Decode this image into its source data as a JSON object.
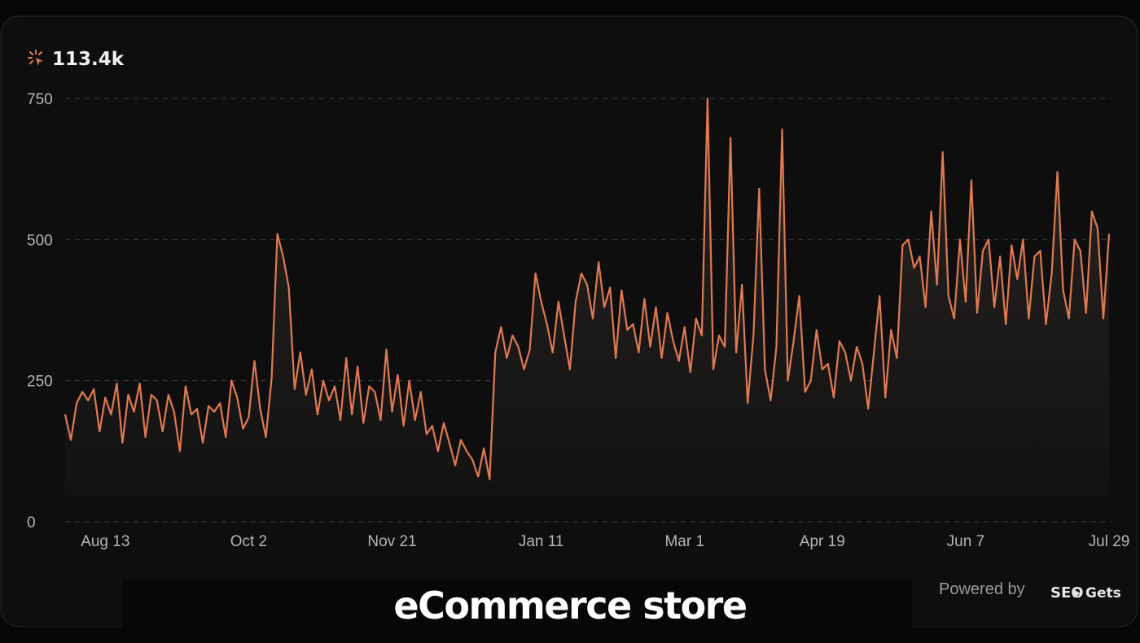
{
  "chart_data": {
    "type": "line",
    "summary": "113.4k",
    "caption": "eCommerce store",
    "footer": "Powered by",
    "brand": [
      "SEO",
      "Gets"
    ],
    "color": "#e07a50",
    "ylim": [
      0,
      750
    ],
    "yticks": [
      0,
      250,
      500,
      750
    ],
    "grid": true,
    "categories": [
      null,
      null,
      null,
      null,
      null,
      null,
      null,
      "Aug 13",
      null,
      null,
      null,
      null,
      null,
      null,
      null,
      null,
      null,
      null,
      null,
      null,
      null,
      null,
      null,
      null,
      null,
      null,
      null,
      null,
      null,
      null,
      null,
      null,
      "Oct 2",
      null,
      null,
      null,
      null,
      null,
      null,
      null,
      null,
      null,
      null,
      null,
      null,
      null,
      null,
      null,
      null,
      null,
      null,
      null,
      null,
      null,
      null,
      null,
      null,
      "Nov 21",
      null,
      null,
      null,
      null,
      null,
      null,
      null,
      null,
      null,
      null,
      null,
      null,
      null,
      null,
      null,
      null,
      null,
      null,
      null,
      null,
      null,
      null,
      null,
      null,
      null,
      "Jan 11",
      null,
      null,
      null,
      null,
      null,
      null,
      null,
      null,
      null,
      null,
      null,
      null,
      null,
      null,
      null,
      null,
      null,
      null,
      null,
      null,
      null,
      null,
      null,
      null,
      "Mar 1",
      null,
      null,
      null,
      null,
      null,
      null,
      null,
      null,
      null,
      null,
      null,
      null,
      null,
      null,
      null,
      null,
      null,
      null,
      null,
      null,
      null,
      null,
      null,
      "Apr 19",
      null,
      null,
      null,
      null,
      null,
      null,
      null,
      null,
      null,
      null,
      null,
      null,
      null,
      null,
      null,
      null,
      null,
      null,
      null,
      null,
      null,
      null,
      null,
      null,
      "Jun 7",
      null,
      null,
      null,
      null,
      null,
      null,
      null,
      null,
      null,
      null,
      null,
      null,
      null,
      null,
      null,
      null,
      null,
      null,
      null,
      null,
      null,
      null,
      null,
      null,
      "Jul 29"
    ],
    "values": [
      190,
      145,
      210,
      230,
      215,
      235,
      160,
      220,
      190,
      245,
      140,
      225,
      195,
      245,
      150,
      225,
      215,
      160,
      225,
      195,
      125,
      240,
      190,
      200,
      140,
      205,
      195,
      210,
      150,
      250,
      220,
      165,
      185,
      285,
      200,
      150,
      255,
      510,
      470,
      415,
      235,
      300,
      225,
      270,
      190,
      250,
      215,
      240,
      180,
      290,
      190,
      275,
      175,
      240,
      230,
      180,
      305,
      195,
      260,
      170,
      250,
      180,
      230,
      155,
      170,
      125,
      175,
      140,
      100,
      145,
      125,
      110,
      80,
      130,
      75,
      300,
      345,
      290,
      330,
      310,
      270,
      305,
      440,
      390,
      350,
      300,
      390,
      330,
      270,
      390,
      440,
      420,
      360,
      460,
      380,
      415,
      290,
      410,
      340,
      350,
      300,
      395,
      310,
      380,
      290,
      370,
      320,
      285,
      345,
      265,
      360,
      330,
      750,
      270,
      330,
      310,
      680,
      300,
      420,
      210,
      330,
      590,
      270,
      215,
      310,
      695,
      250,
      320,
      400,
      230,
      250,
      340,
      270,
      280,
      220,
      320,
      300,
      250,
      310,
      280,
      200,
      300,
      400,
      220,
      340,
      290,
      490,
      500,
      450,
      470,
      380,
      550,
      420,
      655,
      400,
      360,
      500,
      390,
      605,
      370,
      480,
      500,
      380,
      470,
      350,
      490,
      430,
      500,
      360,
      470,
      480,
      350,
      440,
      620,
      410,
      360,
      500,
      480,
      370,
      550,
      520,
      360,
      510
    ]
  }
}
